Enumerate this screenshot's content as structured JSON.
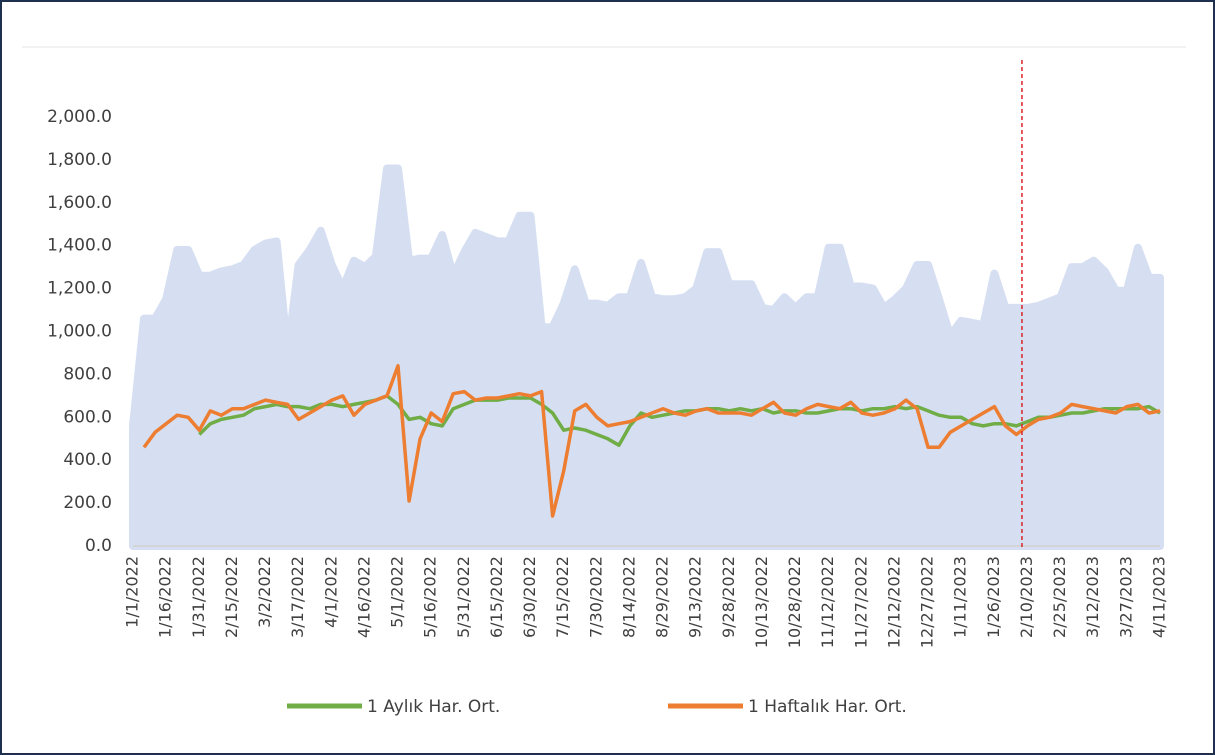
{
  "chart_data": {
    "type": "line",
    "categories": [
      "1/1/2022",
      null,
      null,
      "1/16/2022",
      null,
      null,
      "1/31/2022",
      null,
      null,
      "2/15/2022",
      null,
      null,
      "3/2/2022",
      null,
      null,
      "3/17/2022",
      null,
      null,
      "4/1/2022",
      null,
      null,
      "4/16/2022",
      null,
      null,
      "5/1/2022",
      null,
      null,
      "5/16/2022",
      null,
      null,
      "5/31/2022",
      null,
      null,
      "6/15/2022",
      null,
      null,
      "6/30/2022",
      null,
      null,
      "7/15/2022",
      null,
      null,
      "7/30/2022",
      null,
      null,
      "8/14/2022",
      null,
      null,
      "8/29/2022",
      null,
      null,
      "9/13/2022",
      null,
      null,
      "9/28/2022",
      null,
      null,
      "10/13/2022",
      null,
      null,
      "10/28/2022",
      null,
      null,
      "11/12/2022",
      null,
      null,
      "11/27/2022",
      null,
      null,
      "12/12/2022",
      null,
      null,
      "12/27/2022",
      null,
      null,
      "1/11/2023",
      null,
      null,
      "1/26/2023",
      null,
      null,
      "2/10/2023",
      null,
      null,
      "2/25/2023",
      null,
      null,
      "3/12/2023",
      null,
      null,
      "3/27/2023",
      null,
      null,
      "4/11/2023"
    ],
    "series": [
      {
        "kind": "area",
        "color": "#d6dff2",
        "values": [
          560,
          1060,
          1060,
          1150,
          1380,
          1380,
          1260,
          1260,
          1280,
          1290,
          1310,
          1380,
          1410,
          1420,
          900,
          1310,
          1380,
          1470,
          1310,
          1200,
          1330,
          1300,
          1350,
          1760,
          1760,
          1330,
          1340,
          1340,
          1450,
          1260,
          1370,
          1460,
          1440,
          1420,
          1420,
          1540,
          1540,
          1020,
          1020,
          1130,
          1290,
          1130,
          1130,
          1120,
          1160,
          1160,
          1320,
          1160,
          1150,
          1150,
          1160,
          1200,
          1370,
          1370,
          1220,
          1220,
          1220,
          1110,
          1100,
          1160,
          1110,
          1160,
          1160,
          1390,
          1390,
          1210,
          1210,
          1200,
          1110,
          1150,
          1200,
          1310,
          1310,
          1150,
          980,
          1050,
          1040,
          1030,
          1270,
          1110,
          1110,
          1110,
          1120,
          1140,
          1160,
          1300,
          1300,
          1330,
          1280,
          1190,
          1190,
          1390,
          1250,
          1250
        ]
      },
      {
        "name": "1 Aylık Har. Ort.",
        "color": "#70ad47",
        "values": [
          null,
          null,
          null,
          null,
          null,
          null,
          520,
          570,
          590,
          600,
          610,
          640,
          650,
          660,
          650,
          650,
          640,
          660,
          660,
          650,
          660,
          670,
          680,
          700,
          660,
          590,
          600,
          570,
          560,
          640,
          660,
          680,
          680,
          680,
          690,
          690,
          690,
          660,
          620,
          540,
          550,
          540,
          520,
          500,
          470,
          560,
          620,
          600,
          610,
          620,
          630,
          630,
          640,
          640,
          630,
          640,
          630,
          640,
          620,
          630,
          630,
          620,
          620,
          630,
          640,
          640,
          630,
          640,
          640,
          650,
          640,
          650,
          630,
          610,
          600,
          600,
          570,
          560,
          570,
          570,
          560,
          580,
          600,
          600,
          610,
          620,
          620,
          630,
          640,
          640,
          640,
          640,
          650,
          620
        ]
      },
      {
        "name": "1 Haftalık Har. Ort.",
        "color": "#ed7d31",
        "values": [
          null,
          460,
          530,
          570,
          610,
          600,
          540,
          630,
          610,
          640,
          640,
          660,
          680,
          670,
          660,
          590,
          620,
          650,
          680,
          700,
          610,
          660,
          680,
          700,
          840,
          210,
          500,
          620,
          580,
          710,
          720,
          680,
          690,
          690,
          700,
          710,
          700,
          720,
          140,
          350,
          630,
          660,
          600,
          560,
          570,
          580,
          600,
          620,
          640,
          620,
          610,
          630,
          640,
          620,
          620,
          620,
          610,
          640,
          670,
          620,
          610,
          640,
          660,
          650,
          640,
          670,
          620,
          610,
          620,
          640,
          680,
          640,
          460,
          460,
          530,
          560,
          590,
          620,
          650,
          560,
          520,
          560,
          590,
          600,
          620,
          660,
          650,
          640,
          630,
          620,
          650,
          660,
          620,
          630
        ]
      }
    ],
    "ylim": [
      0,
      2000
    ],
    "yticks": [
      {
        "value": 0,
        "label": "0.0"
      },
      {
        "value": 200,
        "label": "200.0"
      },
      {
        "value": 400,
        "label": "400.0"
      },
      {
        "value": 600,
        "label": "600.0"
      },
      {
        "value": 800,
        "label": "800.0"
      },
      {
        "value": 1000,
        "label": "1,000.0"
      },
      {
        "value": 1200,
        "label": "1,200.0"
      },
      {
        "value": 1400,
        "label": "1,400.0"
      },
      {
        "value": 1600,
        "label": "1,600.0"
      },
      {
        "value": 1800,
        "label": "1,800.0"
      },
      {
        "value": 2000,
        "label": "2,000.0"
      }
    ],
    "vertical_line": {
      "at": 80.5,
      "color": "#d9252a"
    },
    "legend": "bottom"
  }
}
